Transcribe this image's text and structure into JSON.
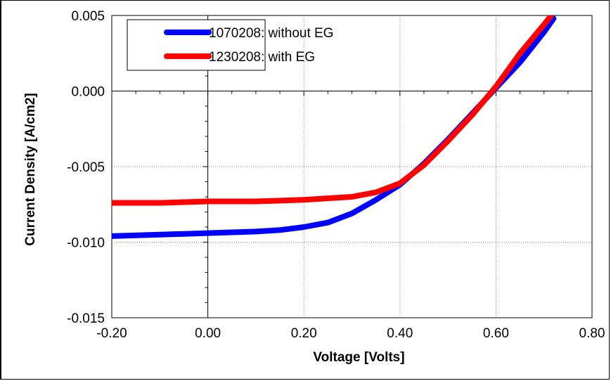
{
  "chart_data": {
    "type": "line",
    "title": "",
    "xlabel": "Voltage [Volts]",
    "ylabel": "Current Density [A/cm2]",
    "xlim": [
      -0.2,
      0.8
    ],
    "ylim": [
      -0.015,
      0.005
    ],
    "xticks": [
      "-0.20",
      "0.00",
      "0.20",
      "0.40",
      "0.60",
      "0.80"
    ],
    "yticks": [
      "0.005",
      "0.000",
      "-0.005",
      "-0.010",
      "-0.015"
    ],
    "grid": true,
    "legend_position": "top-left",
    "series": [
      {
        "name": "1070208: without EG",
        "color": "#0000ff",
        "x": [
          -0.2,
          -0.1,
          0.0,
          0.1,
          0.15,
          0.2,
          0.25,
          0.3,
          0.35,
          0.4,
          0.45,
          0.5,
          0.55,
          0.6,
          0.65,
          0.7,
          0.72
        ],
        "y": [
          -0.0096,
          -0.0095,
          -0.0094,
          -0.0093,
          -0.0092,
          -0.009,
          -0.0087,
          -0.0081,
          -0.0072,
          -0.0062,
          -0.0048,
          -0.0032,
          -0.0015,
          0.0002,
          0.0019,
          0.0039,
          0.0048
        ]
      },
      {
        "name": "1230208: with EG",
        "color": "#ff0000",
        "x": [
          -0.2,
          -0.1,
          0.0,
          0.1,
          0.2,
          0.25,
          0.3,
          0.35,
          0.4,
          0.45,
          0.5,
          0.55,
          0.6,
          0.65,
          0.7,
          0.715
        ],
        "y": [
          -0.0074,
          -0.0074,
          -0.0073,
          -0.0073,
          -0.0072,
          -0.0071,
          -0.007,
          -0.0067,
          -0.0061,
          -0.0049,
          -0.0033,
          -0.0016,
          0.0003,
          0.0025,
          0.0044,
          0.005
        ]
      }
    ]
  }
}
